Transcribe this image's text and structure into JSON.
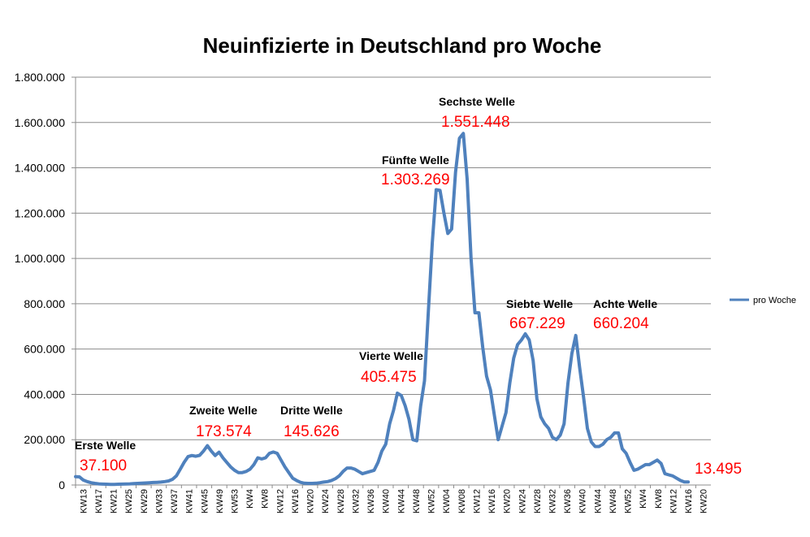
{
  "chart_data": {
    "type": "line",
    "title": "Neuinfizierte in Deutschland pro Woche",
    "xlabel": "",
    "ylabel": "",
    "ylim": [
      0,
      1800000
    ],
    "yticks": [
      0,
      200000,
      400000,
      600000,
      800000,
      1000000,
      1200000,
      1400000,
      1600000,
      1800000
    ],
    "ytick_labels": [
      "0",
      "200.000",
      "400.000",
      "600.000",
      "800.000",
      "1.000.000",
      "1.200.000",
      "1.400.000",
      "1.600.000",
      "1.800.000"
    ],
    "grid": true,
    "legend_position": "right",
    "tick_labels": [
      "KW13",
      "KW17",
      "KW21",
      "KW25",
      "KW29",
      "KW33",
      "KW37",
      "KW41",
      "KW45",
      "KW49",
      "KW53",
      "KW4",
      "KW8",
      "KW12",
      "KW16",
      "KW20",
      "KW24",
      "KW28",
      "KW32",
      "KW36",
      "KW40",
      "KW44",
      "KW48",
      "KW52",
      "KW04",
      "KW08",
      "KW12",
      "KW16",
      "KW20",
      "KW24",
      "KW28",
      "KW32",
      "KW36",
      "KW40",
      "KW44",
      "KW48",
      "KW52",
      "KW4",
      "KW8",
      "KW12",
      "KW16",
      "KW20"
    ],
    "series": [
      {
        "name": "pro Woche",
        "color": "#4f81bd",
        "values": [
          37100,
          36000,
          22000,
          15000,
          10000,
          7000,
          5000,
          4000,
          3500,
          3000,
          3000,
          3500,
          4000,
          4500,
          5000,
          6000,
          7000,
          8000,
          9000,
          10000,
          11000,
          12000,
          13000,
          15000,
          18000,
          25000,
          40000,
          70000,
          100000,
          125000,
          130000,
          127000,
          131000,
          150000,
          173574,
          150000,
          130000,
          145000,
          120000,
          100000,
          80000,
          65000,
          55000,
          55000,
          60000,
          70000,
          90000,
          120000,
          115000,
          120000,
          140000,
          145626,
          140000,
          110000,
          80000,
          55000,
          30000,
          20000,
          12000,
          8000,
          7000,
          7000,
          8000,
          10000,
          13000,
          15000,
          20000,
          28000,
          40000,
          60000,
          75000,
          75000,
          70000,
          60000,
          50000,
          55000,
          60000,
          65000,
          100000,
          150000,
          180000,
          270000,
          330000,
          405475,
          395000,
          350000,
          290000,
          200000,
          195000,
          350000,
          460000,
          770000,
          1070000,
          1303269,
          1300000,
          1200000,
          1110000,
          1130000,
          1380000,
          1530000,
          1551448,
          1350000,
          1000000,
          760000,
          760000,
          610000,
          480000,
          420000,
          310000,
          200000,
          260000,
          320000,
          450000,
          560000,
          620000,
          640000,
          667229,
          640000,
          550000,
          380000,
          300000,
          270000,
          250000,
          210000,
          200000,
          220000,
          270000,
          450000,
          580000,
          660204,
          520000,
          390000,
          250000,
          190000,
          170000,
          170000,
          180000,
          200000,
          210000,
          230000,
          230000,
          160000,
          140000,
          100000,
          65000,
          70000,
          80000,
          90000,
          90000,
          100000,
          110000,
          95000,
          50000,
          45000,
          40000,
          30000,
          20000,
          13495,
          13495
        ]
      }
    ],
    "annotations": [
      {
        "label": "Erste Welle",
        "value_text": "37.100"
      },
      {
        "label": "Zweite Welle",
        "value_text": "173.574"
      },
      {
        "label": "Dritte Welle",
        "value_text": "145.626"
      },
      {
        "label": "Vierte Welle",
        "value_text": "405.475"
      },
      {
        "label": "Fünfte Welle",
        "value_text": "1.303.269"
      },
      {
        "label": "Sechste Welle",
        "value_text": "1.551.448"
      },
      {
        "label": "Siebte Welle",
        "value_text": "667.229"
      },
      {
        "label": "Achte Welle",
        "value_text": "660.204"
      },
      {
        "label": "",
        "value_text": "13.495"
      }
    ]
  }
}
